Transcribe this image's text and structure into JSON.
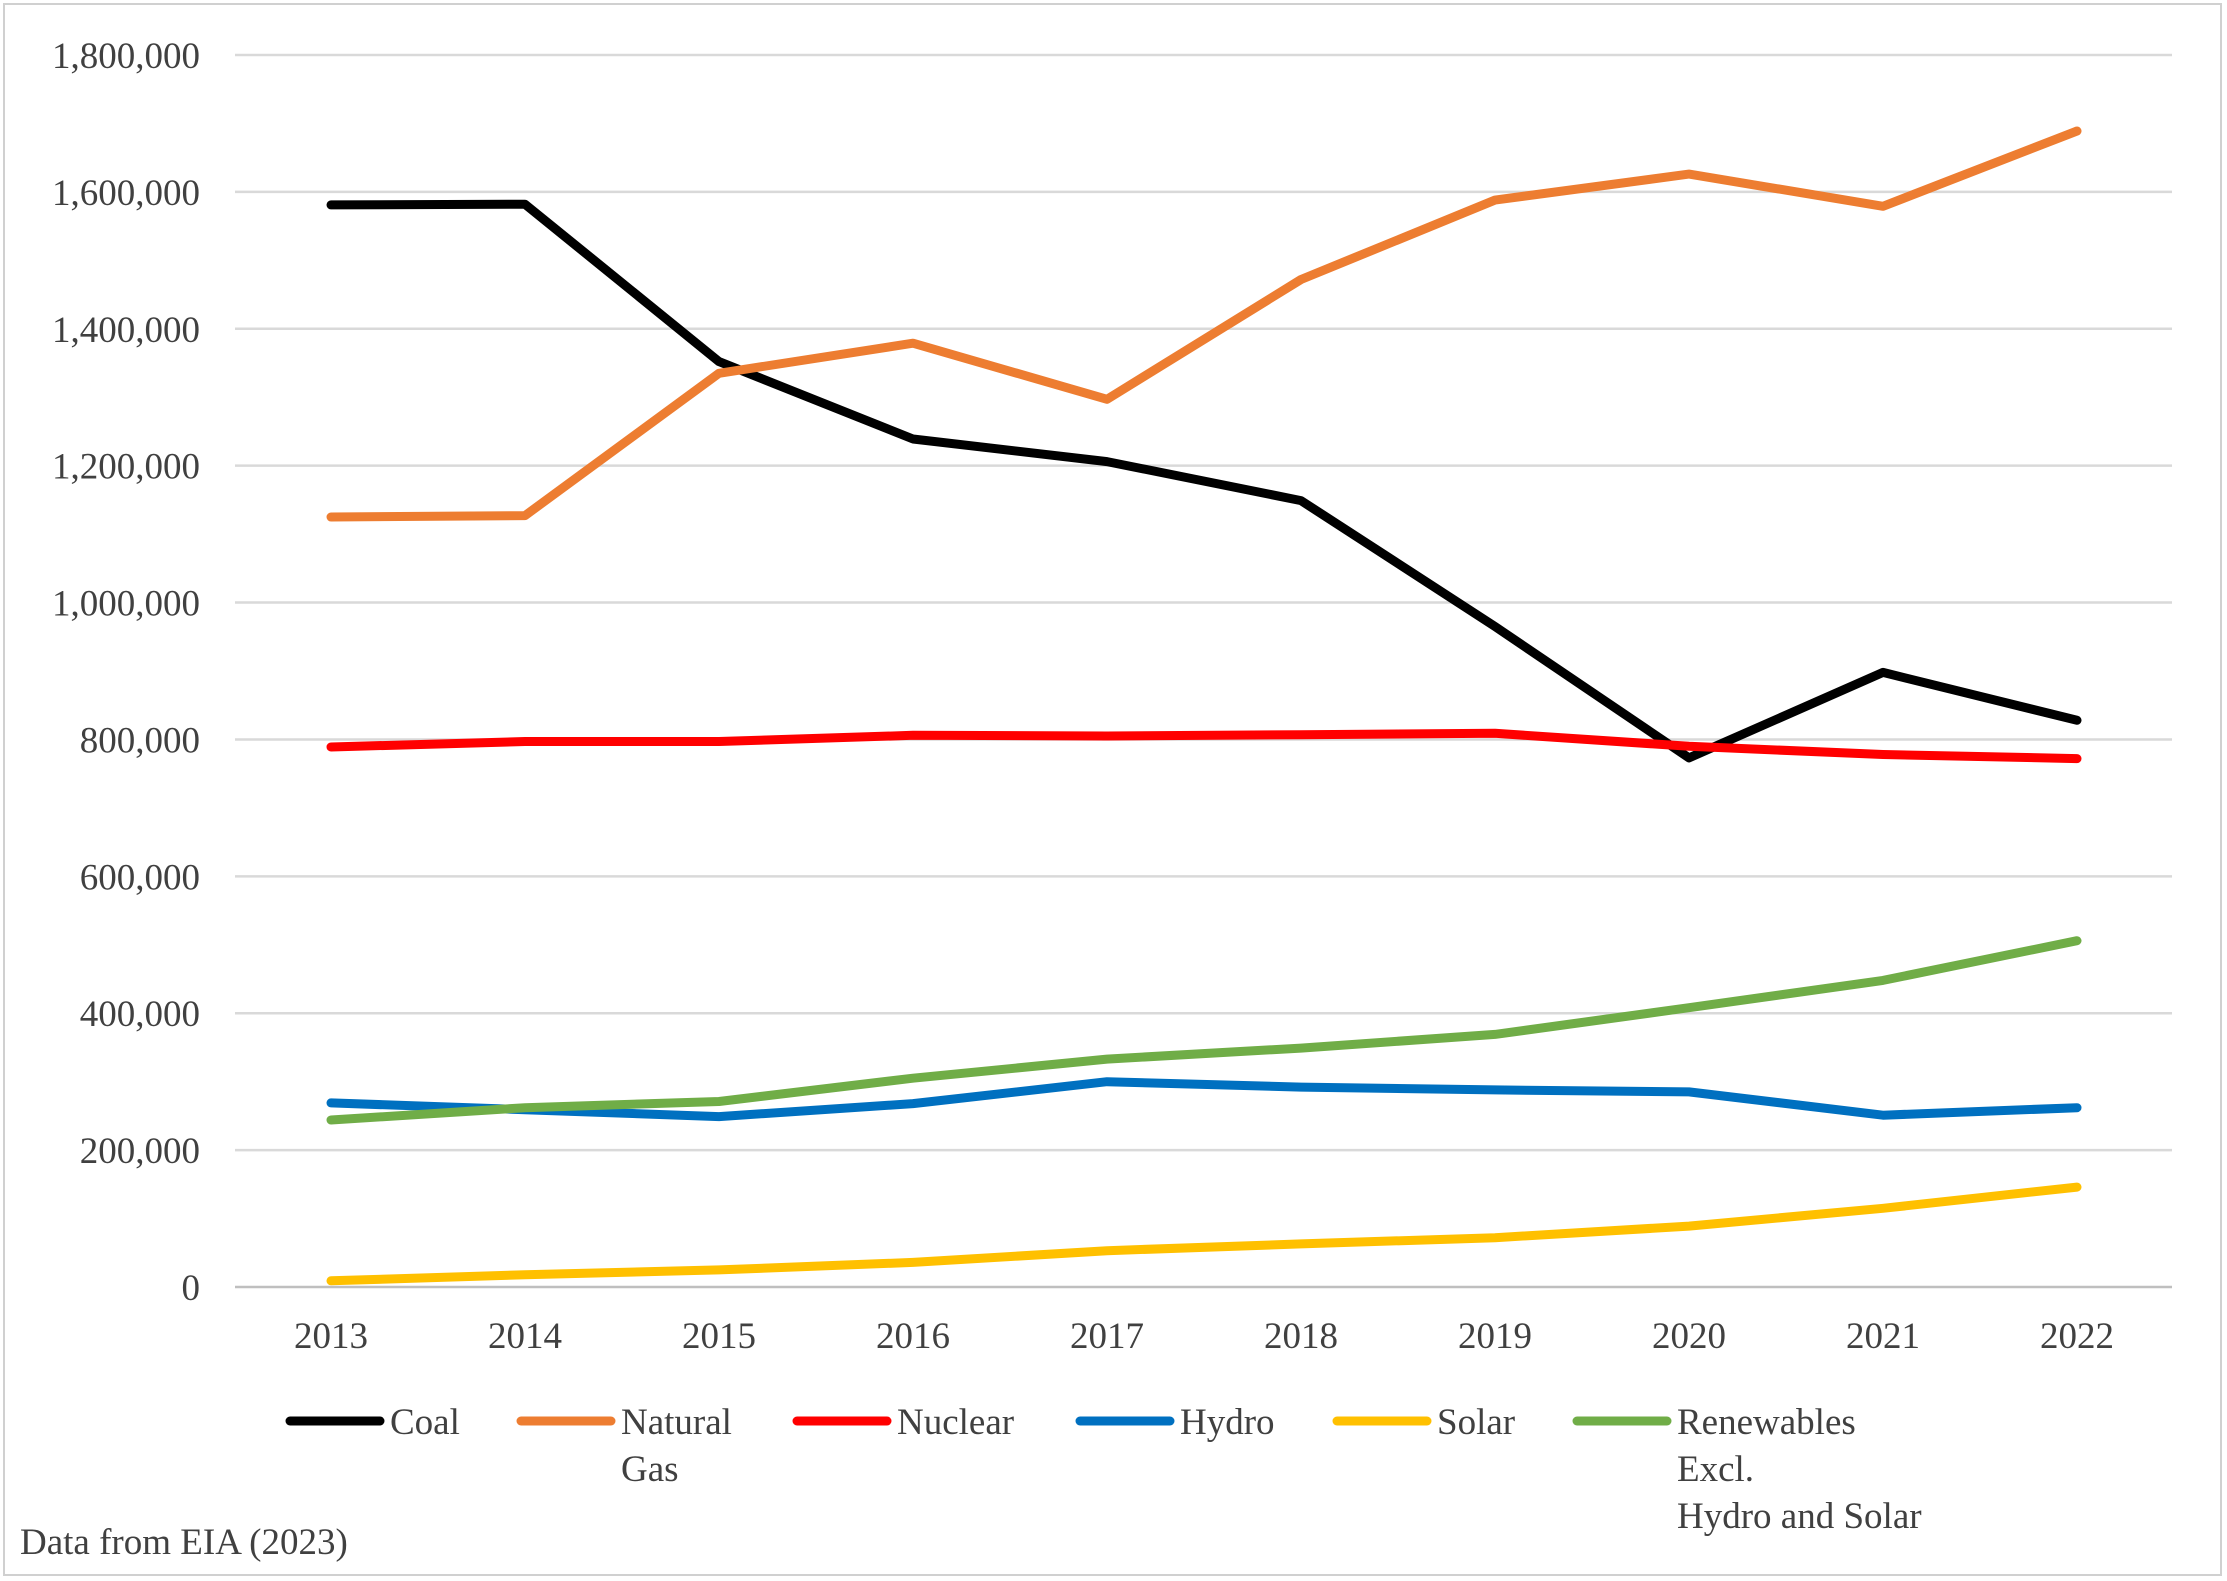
{
  "chart_data": {
    "type": "line",
    "title": "",
    "xlabel": "",
    "ylabel": "",
    "categories": [
      "2013",
      "2014",
      "2015",
      "2016",
      "2017",
      "2018",
      "2019",
      "2020",
      "2021",
      "2022"
    ],
    "ylim": [
      0,
      1800000
    ],
    "yticks": [
      0,
      200000,
      400000,
      600000,
      800000,
      1000000,
      1200000,
      1400000,
      1600000,
      1800000
    ],
    "ytick_labels": [
      "0",
      "200,000",
      "400,000",
      "600,000",
      "800,000",
      "1,000,000",
      "1,200,000",
      "1,400,000",
      "1,600,000",
      "1,800,000"
    ],
    "grid": "horizontal",
    "legend_position": "bottom",
    "series": [
      {
        "name": "Coal",
        "label_lines": [
          "Coal"
        ],
        "color": "#000000",
        "values": [
          1581000,
          1582000,
          1352000,
          1239000,
          1206000,
          1149000,
          965000,
          773000,
          898000,
          828000
        ]
      },
      {
        "name": "Natural Gas",
        "label_lines": [
          "Natural",
          "Gas"
        ],
        "color": "#ED7D31",
        "values": [
          1125000,
          1127000,
          1335000,
          1379000,
          1297000,
          1472000,
          1588000,
          1626000,
          1579000,
          1689000
        ]
      },
      {
        "name": "Nuclear",
        "label_lines": [
          "Nuclear"
        ],
        "color": "#FF0000",
        "values": [
          789000,
          797000,
          797000,
          806000,
          805000,
          807000,
          809000,
          790000,
          778000,
          772000
        ]
      },
      {
        "name": "Hydro",
        "label_lines": [
          "Hydro"
        ],
        "color": "#0070C0",
        "values": [
          269000,
          259000,
          249000,
          268000,
          300000,
          292000,
          288000,
          285000,
          251000,
          262000
        ]
      },
      {
        "name": "Solar",
        "label_lines": [
          "Solar"
        ],
        "color": "#FFC000",
        "values": [
          9000,
          18000,
          25000,
          36000,
          53000,
          63000,
          72000,
          89000,
          115000,
          146000
        ]
      },
      {
        "name": "Renewables Excl. Hydro and Solar",
        "label_lines": [
          "Renewables",
          "Excl.",
          "Hydro and Solar"
        ],
        "color": "#70AD47",
        "values": [
          244000,
          262000,
          271000,
          305000,
          333000,
          349000,
          369000,
          408000,
          448000,
          506000
        ]
      }
    ]
  },
  "source_note": "Data from EIA (2023)"
}
